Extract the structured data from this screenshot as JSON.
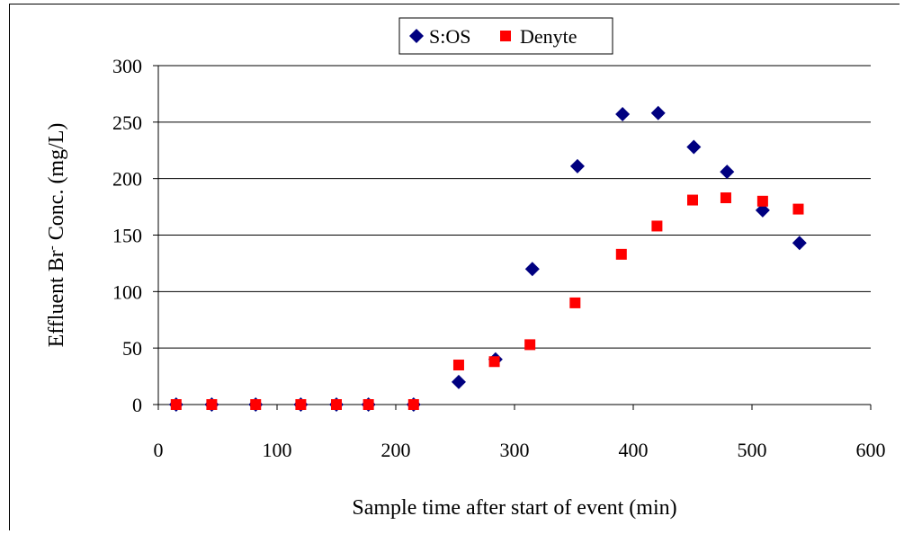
{
  "chart_data": {
    "type": "scatter",
    "xlabel": "Sample time after start of event (min)",
    "ylabel": {
      "prefix": "Effluent Br",
      "superscript": "-",
      "suffix": " Conc. (mg/L)"
    },
    "xlim": [
      0,
      600
    ],
    "ylim": [
      0,
      300
    ],
    "xticks": [
      0,
      100,
      200,
      300,
      400,
      500,
      600
    ],
    "yticks": [
      0,
      50,
      100,
      150,
      200,
      250,
      300
    ],
    "grid": "horizontal",
    "legend_position": "top-center",
    "series": [
      {
        "name": "S:OS",
        "marker": "diamond",
        "color": "#000080",
        "points": [
          [
            15,
            0
          ],
          [
            45,
            0
          ],
          [
            82,
            0
          ],
          [
            120,
            0
          ],
          [
            150,
            0
          ],
          [
            177,
            0
          ],
          [
            215,
            0
          ],
          [
            253,
            20
          ],
          [
            284,
            40
          ],
          [
            315,
            120
          ],
          [
            353,
            211
          ],
          [
            391,
            257
          ],
          [
            421,
            258
          ],
          [
            451,
            228
          ],
          [
            479,
            206
          ],
          [
            509,
            172
          ],
          [
            540,
            143
          ]
        ]
      },
      {
        "name": "Denyte",
        "marker": "square",
        "color": "#ff0000",
        "points": [
          [
            15,
            0
          ],
          [
            45,
            0
          ],
          [
            82,
            0
          ],
          [
            120,
            0
          ],
          [
            150,
            0
          ],
          [
            177,
            0
          ],
          [
            215,
            0
          ],
          [
            253,
            35
          ],
          [
            283,
            38
          ],
          [
            313,
            53
          ],
          [
            351,
            90
          ],
          [
            390,
            133
          ],
          [
            420,
            158
          ],
          [
            450,
            181
          ],
          [
            478,
            183
          ],
          [
            509,
            180
          ],
          [
            539,
            173
          ]
        ]
      }
    ]
  }
}
